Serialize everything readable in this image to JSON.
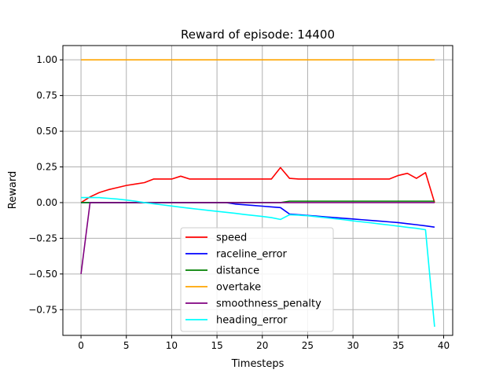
{
  "chart_data": {
    "type": "line",
    "title": "Reward of episode: 14400",
    "xlabel": "Timesteps",
    "ylabel": "Reward",
    "xlim": [
      -2,
      41
    ],
    "ylim": [
      -0.93,
      1.1
    ],
    "xticks": [
      0,
      5,
      10,
      15,
      20,
      25,
      30,
      35,
      40
    ],
    "yticks": [
      -0.75,
      -0.5,
      -0.25,
      0.0,
      0.25,
      0.5,
      0.75,
      1.0
    ],
    "xtick_labels": [
      "0",
      "5",
      "10",
      "15",
      "20",
      "25",
      "30",
      "35",
      "40"
    ],
    "ytick_labels": [
      "−0.75",
      "−0.50",
      "−0.25",
      "0.00",
      "0.25",
      "0.50",
      "0.75",
      "1.00"
    ],
    "grid": true,
    "legend_position": "bottom-center",
    "x": [
      0,
      1,
      2,
      3,
      4,
      5,
      6,
      7,
      8,
      9,
      10,
      11,
      12,
      13,
      14,
      15,
      16,
      17,
      18,
      19,
      20,
      21,
      22,
      23,
      24,
      25,
      26,
      27,
      28,
      29,
      30,
      31,
      32,
      33,
      34,
      35,
      36,
      37,
      38,
      39
    ],
    "series": [
      {
        "name": "speed",
        "color": "#ff0000",
        "values": [
          0.0,
          0.04,
          0.07,
          0.09,
          0.105,
          0.12,
          0.13,
          0.14,
          0.165,
          0.165,
          0.165,
          0.185,
          0.165,
          0.165,
          0.165,
          0.165,
          0.165,
          0.165,
          0.165,
          0.165,
          0.165,
          0.165,
          0.245,
          0.17,
          0.165,
          0.165,
          0.165,
          0.165,
          0.165,
          0.165,
          0.165,
          0.165,
          0.165,
          0.165,
          0.165,
          0.19,
          0.205,
          0.17,
          0.21,
          0.0
        ]
      },
      {
        "name": "raceline_error",
        "color": "#0000ff",
        "values": [
          0.0,
          0.0,
          0.0,
          0.0,
          0.0,
          0.0,
          0.0,
          0.0,
          0.0,
          0.0,
          0.0,
          0.0,
          0.0,
          0.0,
          0.0,
          0.0,
          0.0,
          -0.01,
          -0.015,
          -0.02,
          -0.025,
          -0.03,
          -0.035,
          -0.08,
          -0.085,
          -0.09,
          -0.095,
          -0.1,
          -0.105,
          -0.11,
          -0.115,
          -0.12,
          -0.125,
          -0.13,
          -0.135,
          -0.14,
          -0.148,
          -0.155,
          -0.163,
          -0.172
        ]
      },
      {
        "name": "distance",
        "color": "#008000",
        "values": [
          0.0,
          0.0,
          0.0,
          0.0,
          0.0,
          0.0,
          0.0,
          0.0,
          0.0,
          0.0,
          0.0,
          0.0,
          0.0,
          0.0,
          0.0,
          0.0,
          0.0,
          0.0,
          0.0,
          0.0,
          0.0,
          0.0,
          0.0,
          0.01,
          0.01,
          0.01,
          0.01,
          0.01,
          0.01,
          0.01,
          0.01,
          0.01,
          0.01,
          0.01,
          0.01,
          0.01,
          0.01,
          0.01,
          0.01,
          0.01
        ]
      },
      {
        "name": "overtake",
        "color": "#ffa500",
        "values": [
          1,
          1,
          1,
          1,
          1,
          1,
          1,
          1,
          1,
          1,
          1,
          1,
          1,
          1,
          1,
          1,
          1,
          1,
          1,
          1,
          1,
          1,
          1,
          1,
          1,
          1,
          1,
          1,
          1,
          1,
          1,
          1,
          1,
          1,
          1,
          1,
          1,
          1,
          1,
          1
        ]
      },
      {
        "name": "smoothness_penalty",
        "color": "#800080",
        "values": [
          -0.5,
          0.0,
          0.0,
          0.0,
          0.0,
          0.0,
          0.0,
          0.0,
          0.0,
          0.0,
          0.0,
          0.0,
          0.0,
          0.0,
          0.0,
          0.0,
          0.0,
          0.0,
          0.0,
          0.0,
          0.0,
          0.0,
          0.0,
          0.0,
          0.0,
          0.0,
          0.0,
          0.0,
          0.0,
          0.0,
          0.0,
          0.0,
          0.0,
          0.0,
          0.0,
          0.0,
          0.0,
          0.0,
          0.0,
          0.0
        ]
      },
      {
        "name": "heading_error",
        "color": "#00ffff",
        "values": [
          0.035,
          0.035,
          0.035,
          0.03,
          0.025,
          0.018,
          0.01,
          0.0,
          -0.008,
          -0.016,
          -0.024,
          -0.032,
          -0.04,
          -0.047,
          -0.054,
          -0.061,
          -0.068,
          -0.075,
          -0.083,
          -0.09,
          -0.097,
          -0.105,
          -0.118,
          -0.085,
          -0.088,
          -0.092,
          -0.099,
          -0.106,
          -0.113,
          -0.12,
          -0.128,
          -0.135,
          -0.142,
          -0.15,
          -0.157,
          -0.165,
          -0.173,
          -0.18,
          -0.19,
          -0.87
        ]
      }
    ]
  }
}
